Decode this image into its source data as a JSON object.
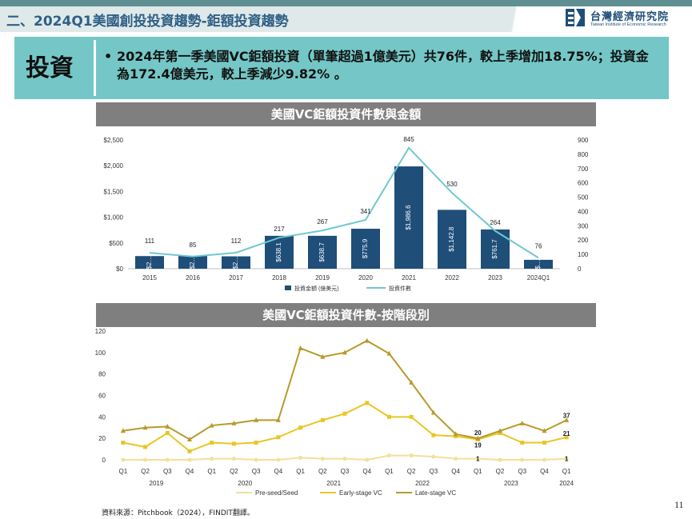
{
  "slide": {
    "title": "二、2024Q1美國創投投資趨勢-鉅額投資趨勢",
    "page_number": "11",
    "source": "資料來源：Pitchbook（2024），FINDIT翻譯。"
  },
  "logo": {
    "name_cn": "台灣經濟研究院",
    "name_en": "Taiwan Institute of Economic Research"
  },
  "summary": {
    "label": "投資",
    "bullet": "•",
    "text": "2024年第一季美國VC鉅額投資（單筆超過1億美元）共76件，較上季增加18.75%；投資金為172.4億美元，較上季減少9.82% 。"
  },
  "colors": {
    "accent": "#74c7c6",
    "bar": "#1f4e79",
    "line": "#6fc9d0",
    "header": "#7f7f7f",
    "title": "#2f5f85",
    "pre_seed": "#f3df9a",
    "early": "#e8c624",
    "late": "#b89a2a"
  },
  "chart_data": [
    {
      "type": "bar",
      "title": "美國VC鉅額投資件數與金額",
      "categories": [
        "2015",
        "2016",
        "2017",
        "2018",
        "2019",
        "2020",
        "2021",
        "2022",
        "2023",
        "2024Q1"
      ],
      "series": [
        {
          "name": "投資金額 (億美元)",
          "axis": "left",
          "values": [
            245,
            250,
            240,
            638.1,
            638.7,
            775.9,
            1986.6,
            1142.8,
            761.7,
            172.4
          ],
          "labels": [
            "$2…",
            "$2…",
            "$2…",
            "$638.1",
            "$638.7",
            "$775.9",
            "$1,986.6",
            "$1,142.8",
            "$761.7",
            "$…"
          ]
        },
        {
          "name": "投資件數",
          "axis": "right",
          "kind": "line",
          "values": [
            111,
            85,
            112,
            217,
            267,
            341,
            845,
            530,
            264,
            76
          ]
        }
      ],
      "y_left": {
        "min": 0,
        "max": 2500,
        "ticks": [
          "$0",
          "$500",
          "$1,000",
          "$1,500",
          "$2,000",
          "$2,500"
        ]
      },
      "y_right": {
        "min": 0,
        "max": 900,
        "ticks": [
          "0",
          "100",
          "200",
          "300",
          "400",
          "500",
          "600",
          "700",
          "800",
          "900"
        ]
      },
      "legend_position": "bottom",
      "grid": false
    },
    {
      "type": "line",
      "title": "美國VC鉅額投資件數-按階段別",
      "categories": [
        "Q1",
        "Q2",
        "Q3",
        "Q4",
        "Q1",
        "Q2",
        "Q3",
        "Q4",
        "Q1",
        "Q2",
        "Q3",
        "Q4",
        "Q1",
        "Q2",
        "Q3",
        "Q4",
        "Q1",
        "Q2",
        "Q3",
        "Q4",
        "Q1"
      ],
      "years": [
        "2019",
        "2020",
        "2021",
        "2022",
        "2023",
        "2024"
      ],
      "series": [
        {
          "name": "Pre-seed/Seed",
          "values": [
            0,
            0,
            0,
            0,
            1,
            1,
            0,
            0,
            2,
            1,
            1,
            0,
            4,
            4,
            3,
            1,
            1,
            0,
            0,
            0,
            1
          ]
        },
        {
          "name": "Early-stage VC",
          "values": [
            16,
            12,
            25,
            8,
            16,
            15,
            16,
            21,
            30,
            37,
            43,
            53,
            40,
            40,
            23,
            22,
            19,
            25,
            16,
            16,
            21
          ]
        },
        {
          "name": "Late-stage VC",
          "values": [
            27,
            30,
            31,
            19,
            32,
            34,
            37,
            37,
            104,
            96,
            100,
            111,
            99,
            72,
            44,
            24,
            20,
            27,
            34,
            27,
            37
          ]
        }
      ],
      "point_labels": [
        {
          "series": "Pre-seed/Seed",
          "index": 16,
          "text": "1"
        },
        {
          "series": "Pre-seed/Seed",
          "index": 20,
          "text": "1"
        },
        {
          "series": "Late-stage VC",
          "index": 16,
          "text": "20"
        },
        {
          "series": "Early-stage VC",
          "index": 16,
          "text": "19"
        },
        {
          "series": "Late-stage VC",
          "index": 20,
          "text": "37"
        },
        {
          "series": "Early-stage VC",
          "index": 20,
          "text": "21"
        }
      ],
      "y": {
        "min": 0,
        "max": 120,
        "ticks": [
          "0",
          "20",
          "40",
          "60",
          "80",
          "100",
          "120"
        ]
      },
      "legend_position": "bottom",
      "grid": false
    }
  ]
}
